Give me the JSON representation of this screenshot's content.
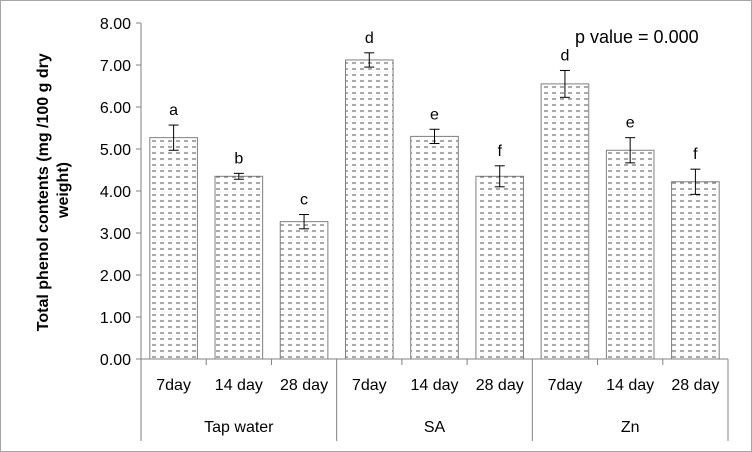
{
  "chart_data": {
    "type": "bar",
    "title": "",
    "ylabel_lines": [
      "Total phenol contents (mg /100 g dry",
      "weight)"
    ],
    "xlabel": "",
    "ylim": [
      0,
      8
    ],
    "yticks": [
      "0.00",
      "1.00",
      "2.00",
      "3.00",
      "4.00",
      "5.00",
      "6.00",
      "7.00",
      "8.00"
    ],
    "grid": false,
    "annotation": "p value = 0.000",
    "groups": [
      {
        "name": "Tap water",
        "bars": [
          {
            "label": "7day",
            "value": 5.27,
            "error": 0.3,
            "letter": "a"
          },
          {
            "label": "14 day",
            "value": 4.35,
            "error": 0.07,
            "letter": "b"
          },
          {
            "label": "28 day",
            "value": 3.27,
            "error": 0.17,
            "letter": "c"
          }
        ]
      },
      {
        "name": "SA",
        "bars": [
          {
            "label": "7day",
            "value": 7.12,
            "error": 0.17,
            "letter": "d"
          },
          {
            "label": "14 day",
            "value": 5.3,
            "error": 0.17,
            "letter": "e"
          },
          {
            "label": "28 day",
            "value": 4.35,
            "error": 0.25,
            "letter": "f"
          }
        ]
      },
      {
        "name": "Zn",
        "bars": [
          {
            "label": "7day",
            "value": 6.55,
            "error": 0.32,
            "letter": "d"
          },
          {
            "label": "14 day",
            "value": 4.97,
            "error": 0.3,
            "letter": "e"
          },
          {
            "label": "28 day",
            "value": 4.22,
            "error": 0.3,
            "letter": "f"
          }
        ]
      }
    ],
    "colors": {
      "bar_fill": "#ffffff",
      "bar_pattern": "#555555",
      "bar_stroke": "#7f7f7f",
      "axis": "#808080",
      "border": "#a6a6a6"
    }
  }
}
